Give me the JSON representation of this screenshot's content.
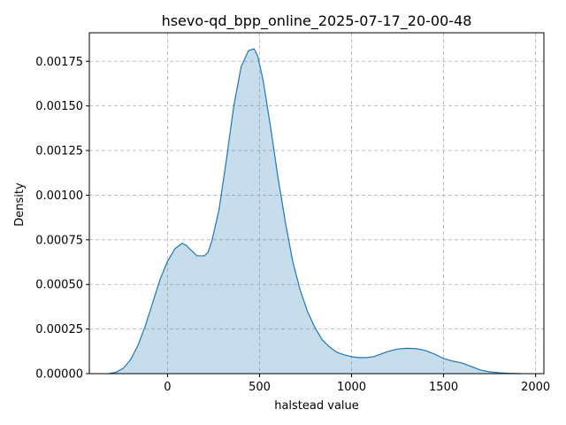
{
  "chart_data": {
    "type": "area",
    "title": "hsevo-qd_bpp_online_2025-07-17_20-00-48",
    "xlabel": "halstead value",
    "ylabel": "Density",
    "xlim": [
      -425,
      2045
    ],
    "ylim": [
      0,
      0.00191
    ],
    "grid": true,
    "xticks": [
      0,
      500,
      1000,
      1500,
      2000
    ],
    "xtick_labels": [
      "0",
      "500",
      "1000",
      "1500",
      "2000"
    ],
    "yticks": [
      0,
      0.00025,
      0.0005,
      0.00075,
      0.001,
      0.00125,
      0.0015,
      0.00175
    ],
    "ytick_labels": [
      "0.00000",
      "0.00025",
      "0.00050",
      "0.00075",
      "0.00100",
      "0.00125",
      "0.00150",
      "0.00175"
    ],
    "series": [
      {
        "line_color": "#1f77b4",
        "fill_color": "#1f77b4",
        "fill_opacity": 0.25,
        "x": [
          -320,
          -280,
          -240,
          -200,
          -160,
          -120,
          -80,
          -40,
          0,
          40,
          80,
          100,
          120,
          160,
          200,
          220,
          240,
          280,
          320,
          360,
          400,
          440,
          470,
          490,
          520,
          560,
          600,
          640,
          680,
          720,
          760,
          800,
          840,
          880,
          920,
          960,
          1000,
          1040,
          1080,
          1120,
          1160,
          1200,
          1250,
          1300,
          1350,
          1400,
          1450,
          1500,
          1550,
          1600,
          1650,
          1700,
          1750,
          1800,
          1850,
          1920
        ],
        "y": [
          0.0,
          8e-06,
          3e-05,
          8e-05,
          0.00016,
          0.00027,
          0.0004,
          0.00053,
          0.00063,
          0.0007,
          0.00073,
          0.00072,
          0.0007,
          0.00066,
          0.00066,
          0.00068,
          0.00074,
          0.00092,
          0.0012,
          0.0015,
          0.00172,
          0.00181,
          0.00182,
          0.00178,
          0.00164,
          0.00138,
          0.0011,
          0.00085,
          0.00063,
          0.00047,
          0.00035,
          0.00026,
          0.00019,
          0.00015,
          0.00012,
          0.000105,
          9.5e-05,
          9e-05,
          9e-05,
          9.5e-05,
          0.00011,
          0.000125,
          0.000138,
          0.000142,
          0.00014,
          0.00013,
          0.00011,
          8.5e-05,
          7e-05,
          6e-05,
          4e-05,
          2e-05,
          1e-05,
          5e-06,
          2e-06,
          0.0
        ]
      }
    ]
  }
}
